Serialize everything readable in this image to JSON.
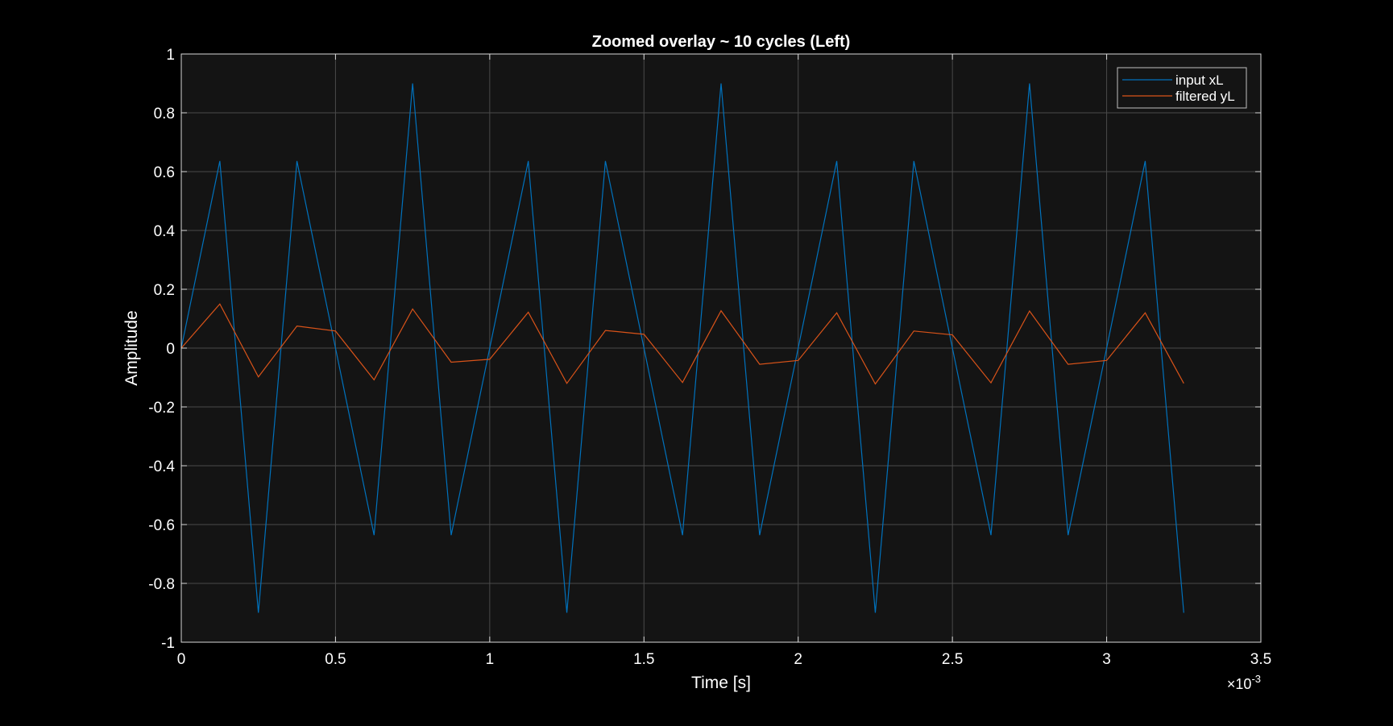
{
  "chart_data": {
    "type": "line",
    "title": "Zoomed overlay ~ 10 cycles (Left)",
    "xlabel": "Time [s]",
    "ylabel": "Amplitude",
    "x_exponent_label": "×10",
    "x_exponent_power": "-3",
    "xlim": [
      0,
      0.0035
    ],
    "ylim": [
      -1,
      1
    ],
    "x_tick_values": [
      0,
      0.0005,
      0.001,
      0.0015,
      0.002,
      0.0025,
      0.003,
      0.0035
    ],
    "x_tick_labels": [
      "0",
      "0.5",
      "1",
      "1.5",
      "2",
      "2.5",
      "3",
      "3.5"
    ],
    "y_tick_values": [
      -1,
      -0.8,
      -0.6,
      -0.4,
      -0.2,
      0,
      0.2,
      0.4,
      0.6,
      0.8,
      1
    ],
    "y_tick_labels": [
      "-1",
      "-0.8",
      "-0.6",
      "-0.4",
      "-0.2",
      "0",
      "0.2",
      "0.4",
      "0.6",
      "0.8",
      "1"
    ],
    "grid": true,
    "legend_location": "top-right",
    "x": [
      0,
      0.000125,
      0.00025,
      0.000375,
      0.0005,
      0.000625,
      0.00075,
      0.000875,
      0.001,
      0.001125,
      0.00125,
      0.001375,
      0.0015,
      0.001625,
      0.00175,
      0.001875,
      0.002,
      0.002125,
      0.00225,
      0.002375,
      0.0025,
      0.002625,
      0.00275,
      0.002875,
      0.003,
      0.003125,
      0.00325
    ],
    "series": [
      {
        "name": "input xL",
        "color": "#0072BD",
        "values": [
          0,
          0.636,
          -0.9,
          0.636,
          0,
          -0.636,
          0.9,
          -0.636,
          0,
          0.636,
          -0.9,
          0.636,
          0,
          -0.636,
          0.9,
          -0.636,
          0,
          0.636,
          -0.9,
          0.636,
          0,
          -0.636,
          0.9,
          -0.636,
          0,
          0.636,
          -0.9
        ]
      },
      {
        "name": "filtered yL",
        "color": "#D95319",
        "values": [
          0,
          0.15,
          -0.098,
          0.075,
          0.058,
          -0.108,
          0.133,
          -0.048,
          -0.038,
          0.122,
          -0.12,
          0.06,
          0.047,
          -0.117,
          0.127,
          -0.055,
          -0.042,
          0.12,
          -0.122,
          0.058,
          0.045,
          -0.118,
          0.126,
          -0.055,
          -0.042,
          0.12,
          -0.12
        ]
      }
    ]
  },
  "colors": {
    "figure_background": "#000000",
    "axes_background": "#141414",
    "grid": "#4a4a4a",
    "axis_line": "#d9d9d9",
    "text": "#ffffff",
    "legend_background": "#141414",
    "legend_border": "#bfbfbf"
  }
}
